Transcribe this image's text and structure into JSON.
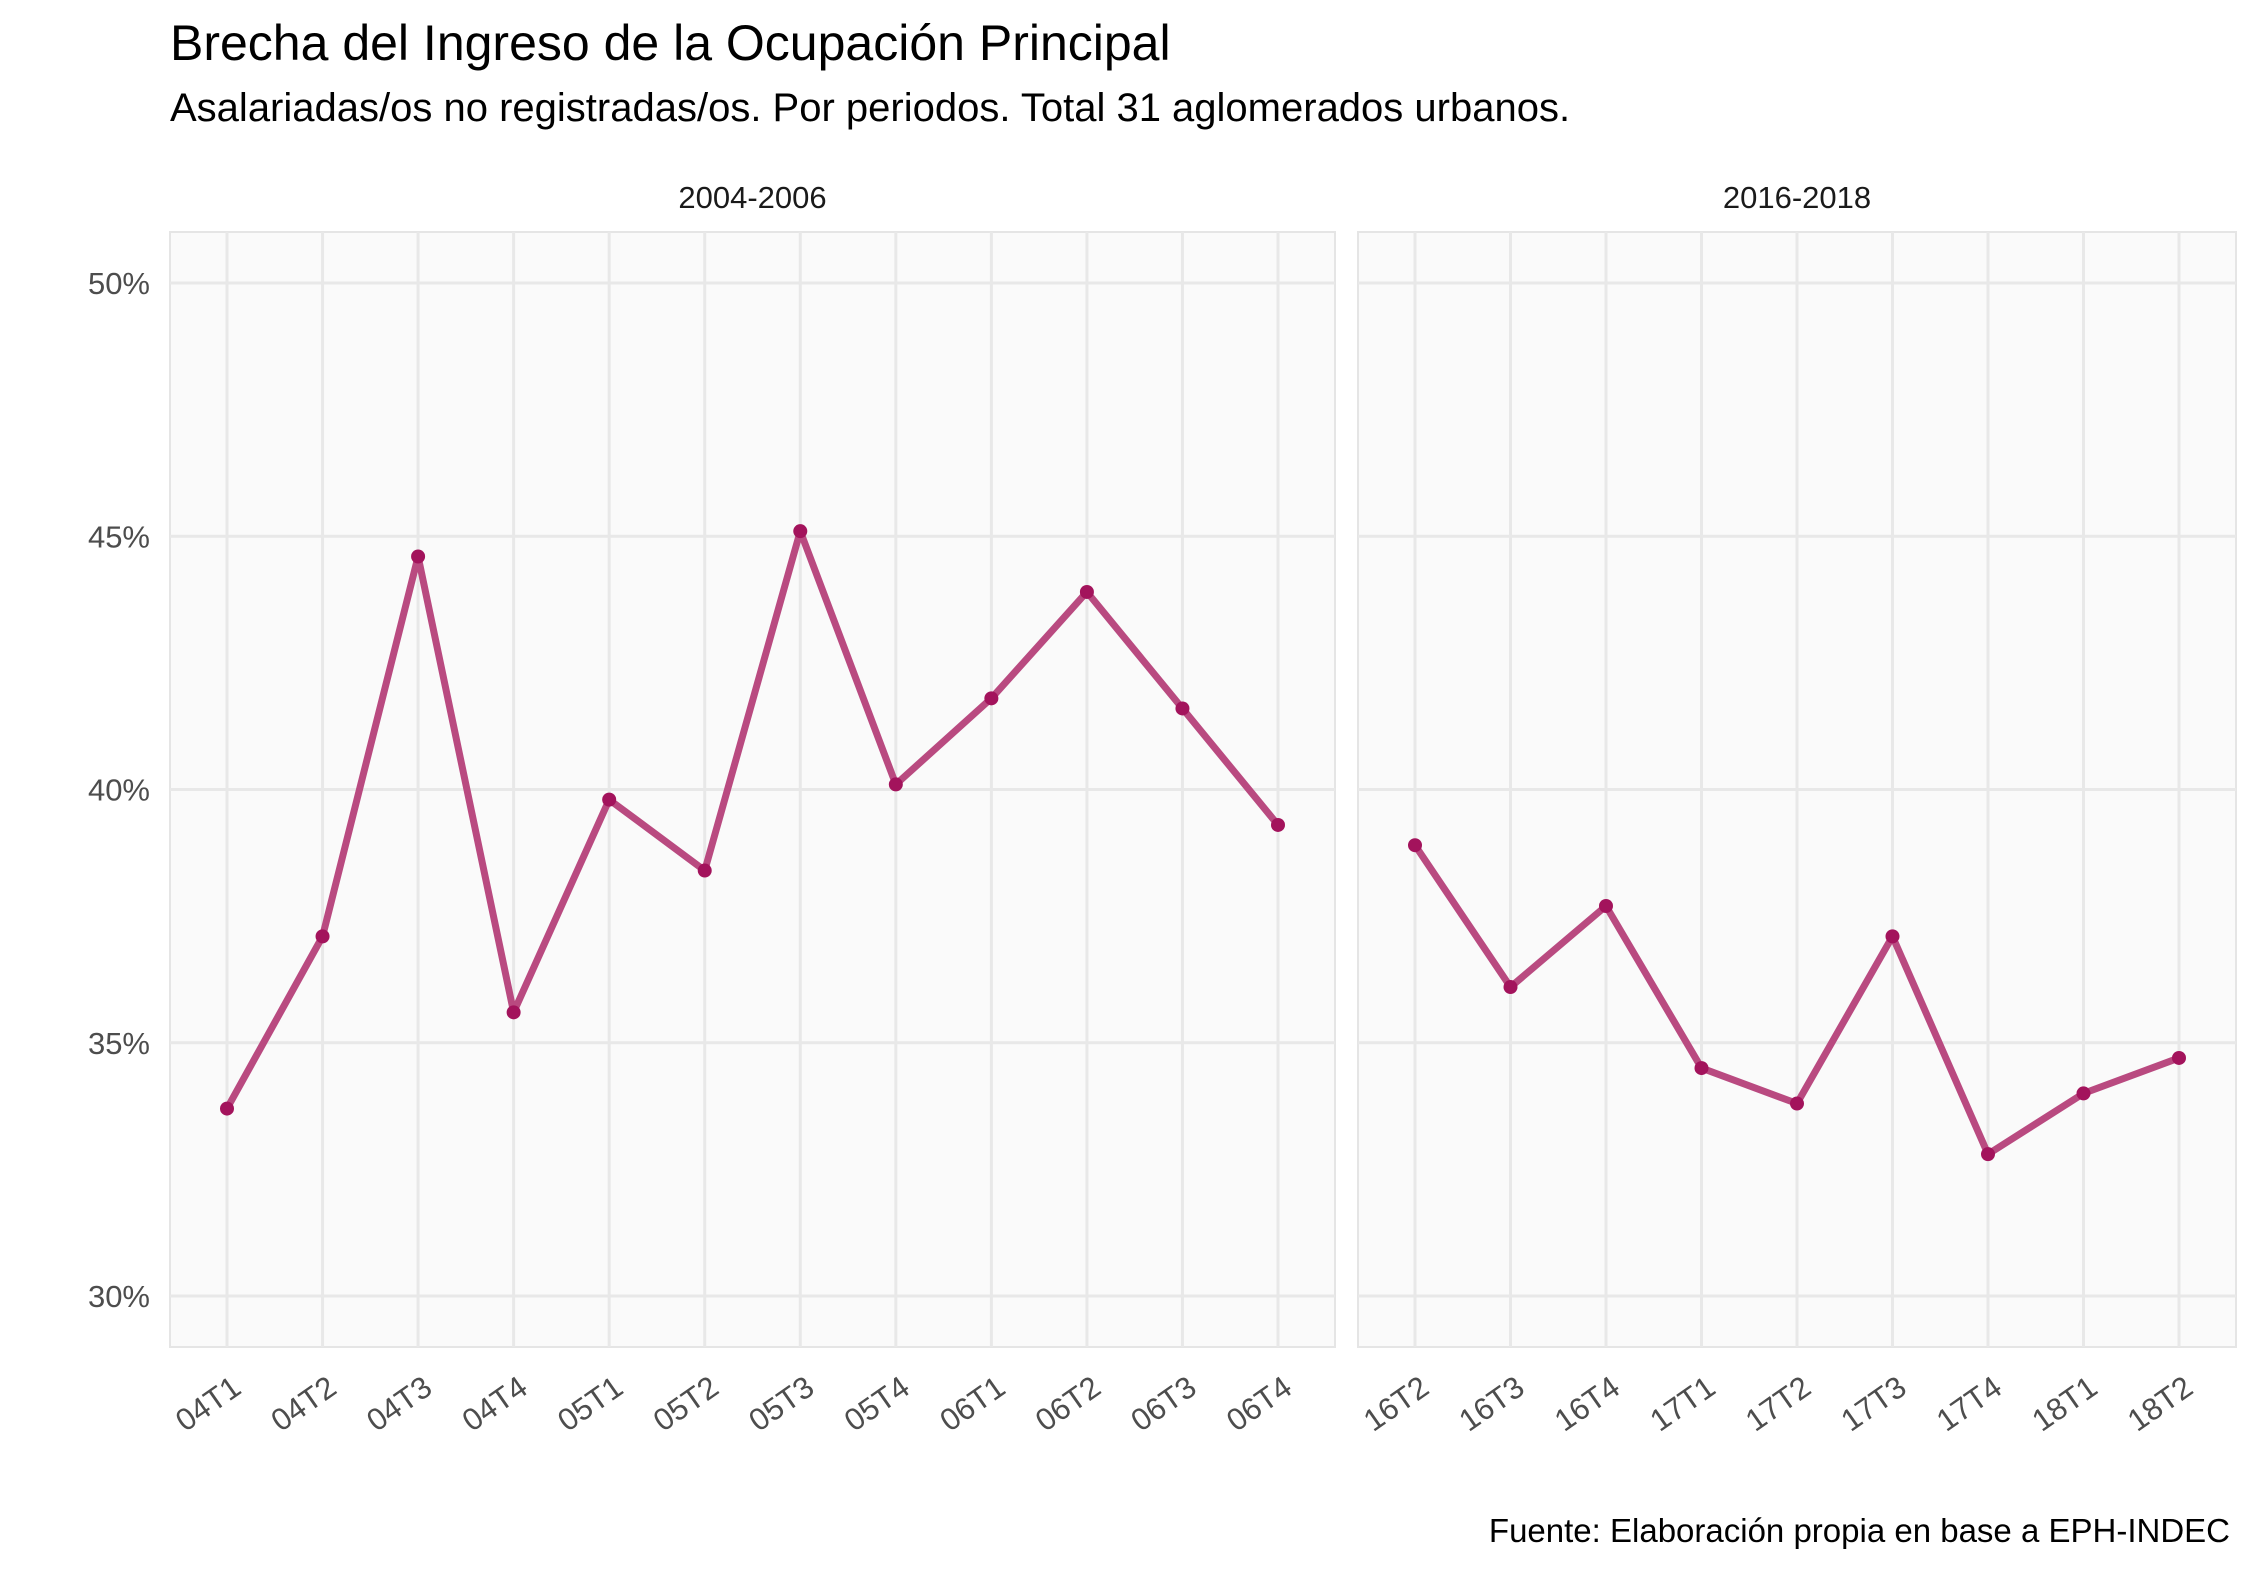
{
  "title": "Brecha del Ingreso de la Ocupación Principal",
  "subtitle": "Asalariadas/os no registradas/os. Por periodos. Total 31 aglomerados urbanos.",
  "caption": "Fuente: Elaboración propia en base a EPH-INDEC",
  "colors": {
    "line": "#b94a80",
    "point": "#a3135c",
    "panel_bg": "#fafafa",
    "grid": "#e8e8e8",
    "axis_text": "#4d4d4d"
  },
  "chart_data": {
    "type": "line",
    "xlabel": "",
    "ylabel": "",
    "ylim": [
      29,
      51
    ],
    "yticks": [
      30,
      35,
      40,
      45,
      50
    ],
    "ytick_labels": [
      "30%",
      "35%",
      "40%",
      "45%",
      "50%"
    ],
    "grid": true,
    "panels": [
      {
        "name": "2004-2006",
        "categories": [
          "04T1",
          "04T2",
          "04T3",
          "04T4",
          "05T1",
          "05T2",
          "05T3",
          "05T4",
          "06T1",
          "06T2",
          "06T3",
          "06T4"
        ],
        "values": [
          33.7,
          37.1,
          44.6,
          35.6,
          39.8,
          38.4,
          45.1,
          40.1,
          41.8,
          43.9,
          41.6,
          39.3
        ]
      },
      {
        "name": "2016-2018",
        "categories": [
          "16T2",
          "16T3",
          "16T4",
          "17T1",
          "17T2",
          "17T3",
          "17T4",
          "18T1",
          "18T2"
        ],
        "values": [
          38.9,
          36.1,
          37.7,
          34.5,
          33.8,
          37.1,
          32.8,
          34.0,
          34.7
        ]
      }
    ]
  }
}
